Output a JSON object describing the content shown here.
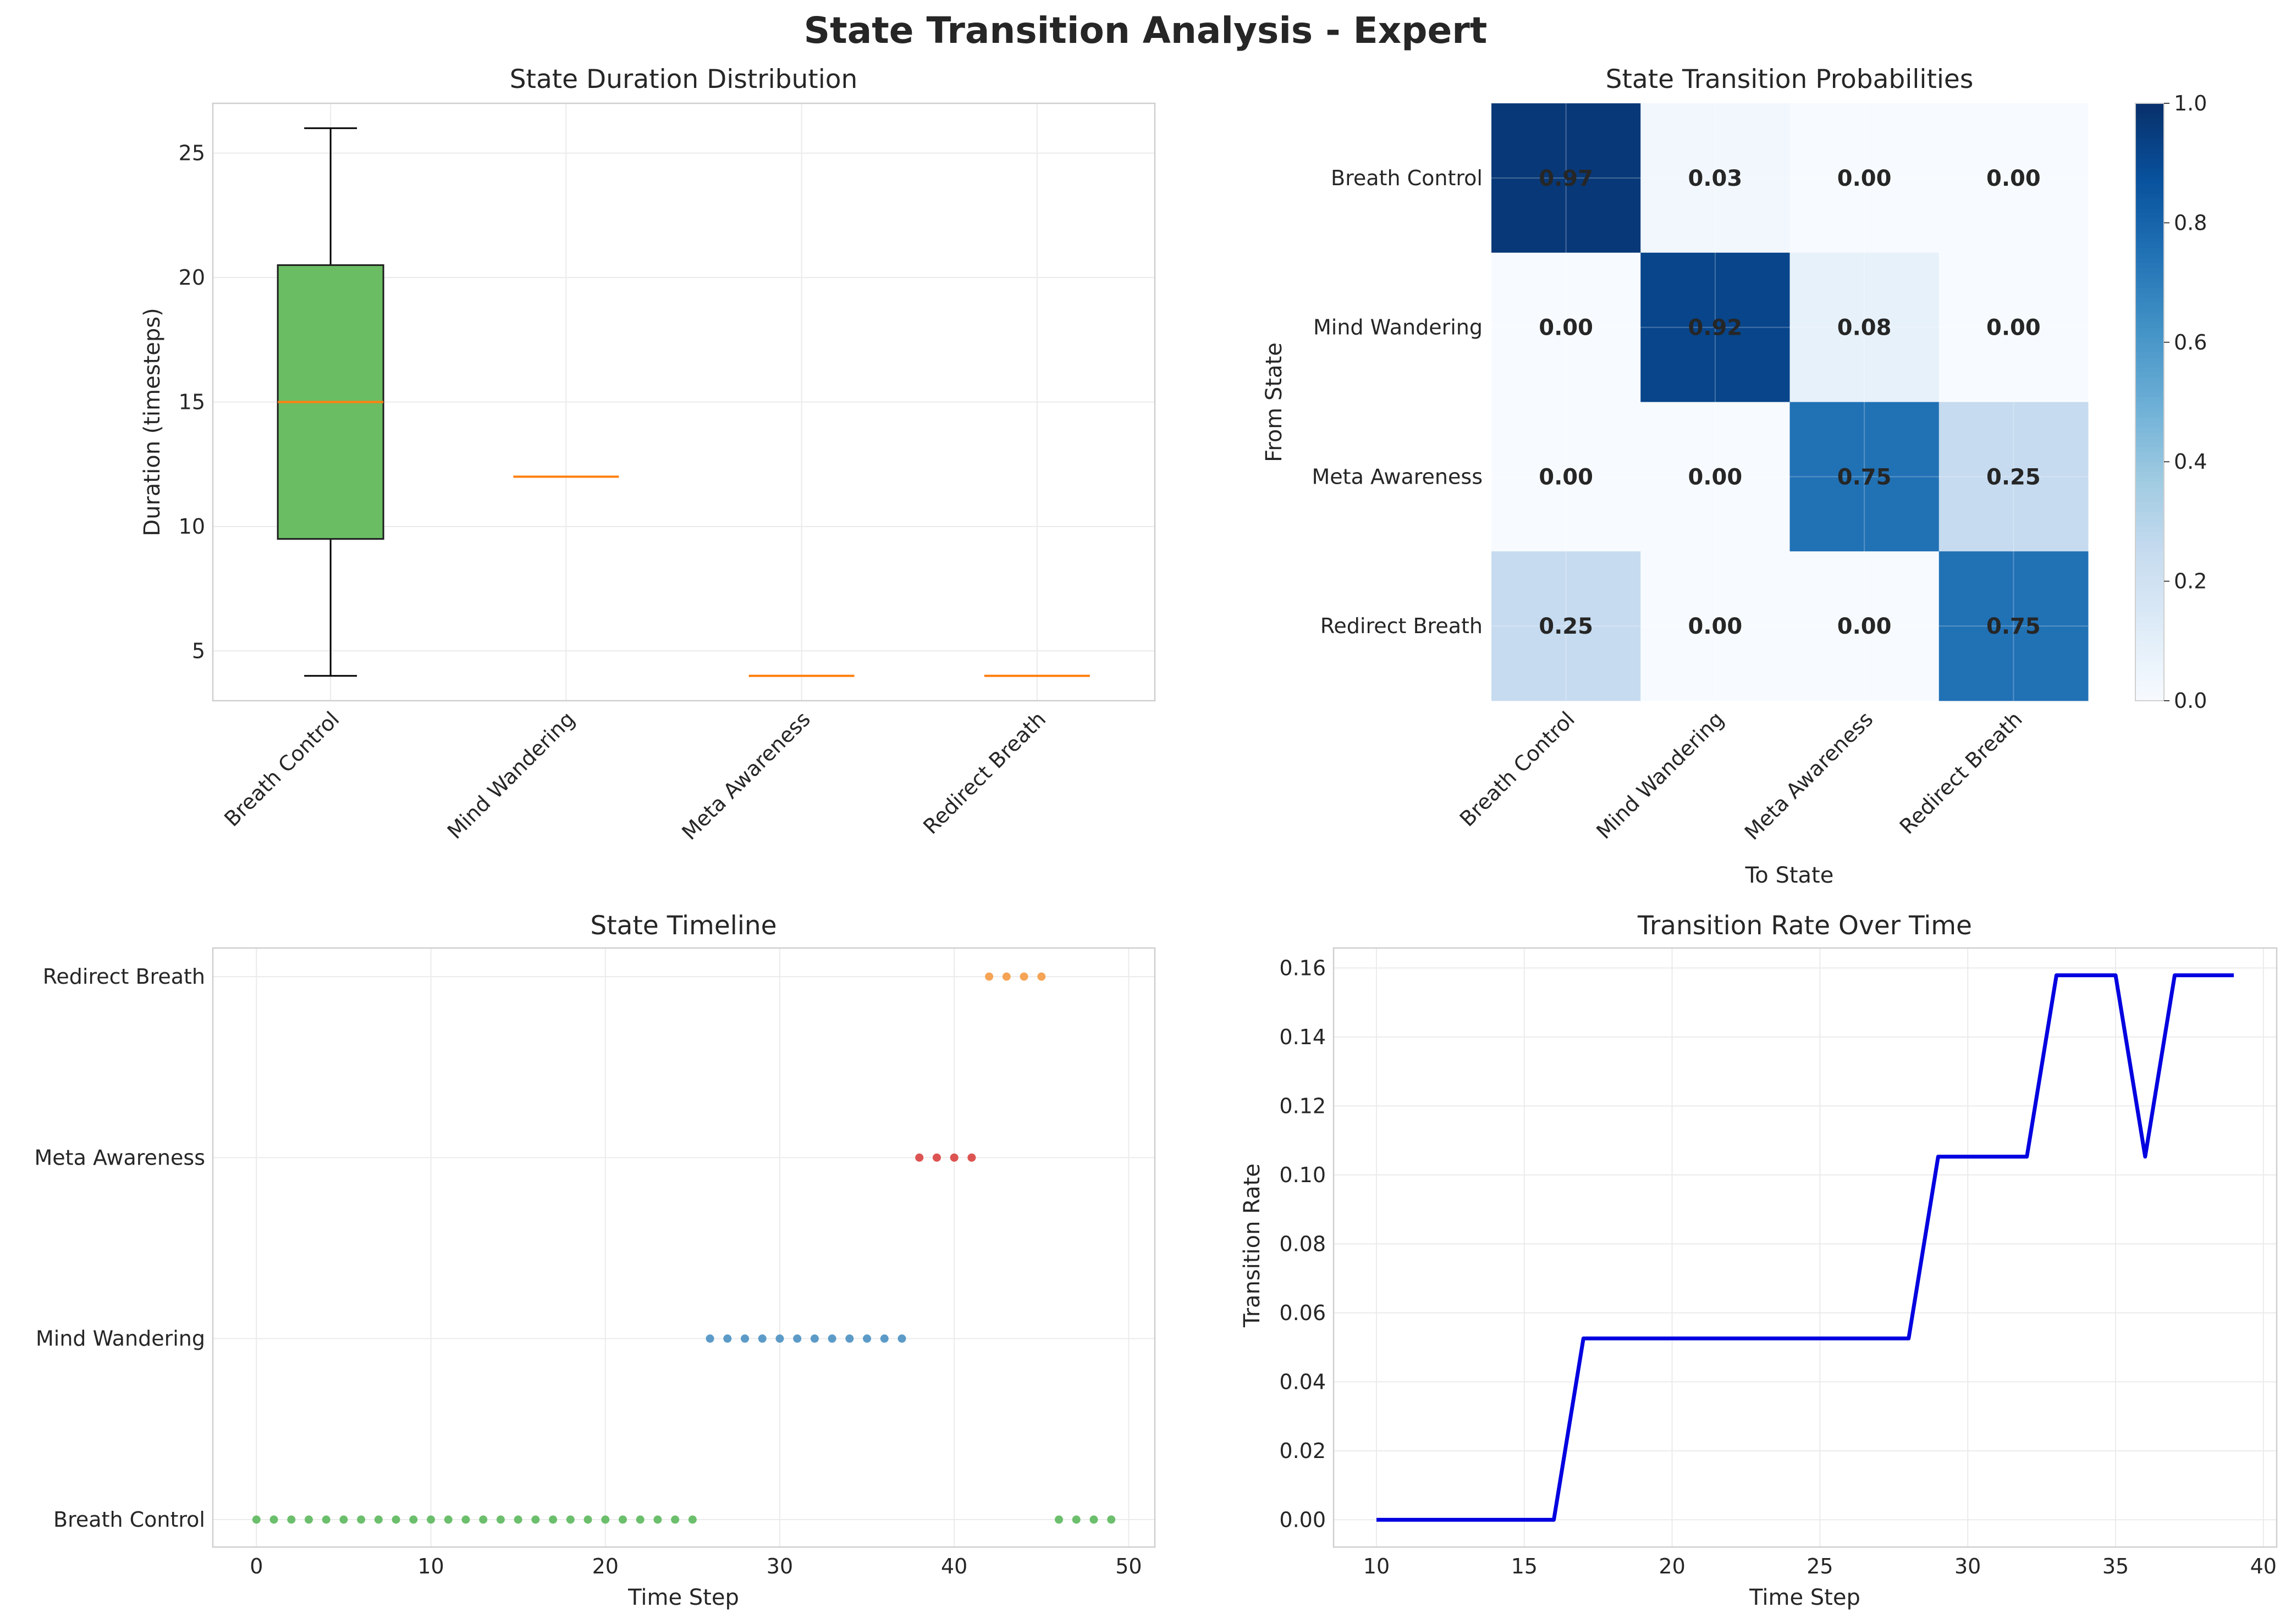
{
  "figure_title": "State Transition Analysis - Expert",
  "chart_data": [
    {
      "type": "box",
      "title": "State Duration Distribution",
      "xlabel": "",
      "ylabel": "Duration (timesteps)",
      "categories": [
        "Breath Control",
        "Mind Wandering",
        "Meta Awareness",
        "Redirect Breath"
      ],
      "boxes": [
        {
          "min": 4,
          "q1": 9.5,
          "median": 15,
          "q3": 20.5,
          "max": 26
        },
        {
          "min": 12,
          "q1": 12,
          "median": 12,
          "q3": 12,
          "max": 12
        },
        {
          "min": 4,
          "q1": 4,
          "median": 4,
          "q3": 4,
          "max": 4
        },
        {
          "min": 4,
          "q1": 4,
          "median": 4,
          "q3": 4,
          "max": 4
        }
      ],
      "ylim": [
        3,
        27
      ],
      "yticks": [
        5,
        10,
        15,
        20,
        25
      ],
      "grid": true,
      "colors": {
        "box": "#6bbd63",
        "median": "#ff7f0e"
      }
    },
    {
      "type": "heatmap",
      "title": "State Transition Probabilities",
      "xlabel": "To State",
      "ylabel": "From State",
      "rows": [
        "Breath Control",
        "Mind Wandering",
        "Meta Awareness",
        "Redirect Breath"
      ],
      "cols": [
        "Breath Control",
        "Mind Wandering",
        "Meta Awareness",
        "Redirect Breath"
      ],
      "values": [
        [
          0.97,
          0.03,
          0.0,
          0.0
        ],
        [
          0.0,
          0.92,
          0.08,
          0.0
        ],
        [
          0.0,
          0.0,
          0.75,
          0.25
        ],
        [
          0.25,
          0.0,
          0.0,
          0.75
        ]
      ],
      "colorbar": {
        "min": 0.0,
        "max": 1.0,
        "ticks": [
          "0.0",
          "0.2",
          "0.4",
          "0.6",
          "0.8",
          "1.0"
        ]
      },
      "colormap": "Blues"
    },
    {
      "type": "scatter",
      "title": "State Timeline",
      "xlabel": "Time Step",
      "ylabel": "",
      "states": [
        "Breath Control",
        "Mind Wandering",
        "Meta Awareness",
        "Redirect Breath"
      ],
      "series": [
        {
          "state": "Breath Control",
          "color": "#5cb85c",
          "x": [
            0,
            1,
            2,
            3,
            4,
            5,
            6,
            7,
            8,
            9,
            10,
            11,
            12,
            13,
            14,
            15,
            16,
            17,
            18,
            19,
            20,
            21,
            22,
            23,
            24,
            25,
            46,
            47,
            48,
            49
          ]
        },
        {
          "state": "Mind Wandering",
          "color": "#4a90c2",
          "x": [
            26,
            27,
            28,
            29,
            30,
            31,
            32,
            33,
            34,
            35,
            36,
            37
          ]
        },
        {
          "state": "Meta Awareness",
          "color": "#d9413f",
          "x": [
            38,
            39,
            40,
            41
          ]
        },
        {
          "state": "Redirect Breath",
          "color": "#f59a42",
          "x": [
            42,
            43,
            44,
            45
          ]
        }
      ],
      "xlim": [
        -2.5,
        51.5
      ],
      "xticks": [
        0,
        10,
        20,
        30,
        40,
        50
      ],
      "grid": true
    },
    {
      "type": "line",
      "title": "Transition Rate Over Time",
      "xlabel": "Time Step",
      "ylabel": "Transition Rate",
      "x": [
        10,
        11,
        12,
        13,
        14,
        15,
        16,
        17,
        18,
        19,
        20,
        21,
        22,
        23,
        24,
        25,
        26,
        27,
        28,
        29,
        30,
        31,
        32,
        33,
        34,
        35,
        36,
        37,
        38,
        39
      ],
      "y": [
        0,
        0,
        0,
        0,
        0,
        0,
        0,
        0.0526,
        0.0526,
        0.0526,
        0.0526,
        0.0526,
        0.0526,
        0.0526,
        0.0526,
        0.0526,
        0.0526,
        0.0526,
        0.0526,
        0.1053,
        0.1053,
        0.1053,
        0.1053,
        0.1579,
        0.1579,
        0.1579,
        0.1053,
        0.1579,
        0.1579,
        0.1579
      ],
      "xlim": [
        8.55,
        40.45
      ],
      "ylim": [
        -0.0079,
        0.1658
      ],
      "xticks": [
        10,
        15,
        20,
        25,
        30,
        35,
        40
      ],
      "yticks": [
        "0.00",
        "0.02",
        "0.04",
        "0.06",
        "0.08",
        "0.10",
        "0.12",
        "0.14",
        "0.16"
      ],
      "color": "#0000e0",
      "grid": true
    }
  ]
}
